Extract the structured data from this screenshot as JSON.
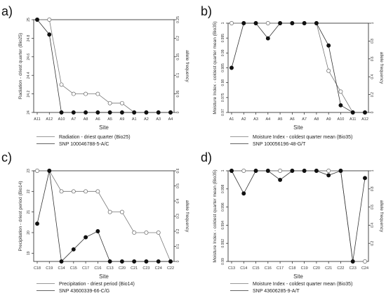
{
  "chart_data": [
    {
      "type": "line",
      "panel_label": "a)",
      "xlabel": "Site",
      "ylabel": "Radiation - driest quarter (Bio25)",
      "y2label": "allele frequency",
      "categories": [
        "A11",
        "A12",
        "A10",
        "A7",
        "A8",
        "A6",
        "A5",
        "A9",
        "A1",
        "A2",
        "A3",
        "A4"
      ],
      "y_ticks": [
        24.0,
        24.2,
        24.4,
        24.6,
        24.8,
        25.0
      ],
      "y2_ticks": [
        0.0,
        0.05,
        0.1,
        0.15,
        0.2,
        0.25
      ],
      "ylim": [
        24.0,
        25.0
      ],
      "y2lim": [
        0.0,
        0.25
      ],
      "series": [
        {
          "name": "Radiation - driest quarter (Bio25)",
          "axis": "left",
          "marker": "open",
          "values": [
            25.0,
            25.0,
            24.3,
            24.2,
            24.2,
            24.2,
            24.1,
            24.1,
            24.0,
            24.0,
            24.0,
            24.0
          ]
        },
        {
          "name": "SNP 100046788-5-A/C",
          "axis": "right",
          "marker": "filled",
          "values": [
            0.25,
            0.21,
            0.0,
            0.0,
            0.0,
            0.0,
            0.0,
            0.0,
            0.0,
            0.0,
            0.0,
            0.0
          ]
        }
      ]
    },
    {
      "type": "line",
      "panel_label": "b)",
      "xlabel": "Site",
      "ylabel": "Moisture Index - coldest quarter mean (Bio35)",
      "y2label": "allele frequency",
      "categories": [
        "A1",
        "A2",
        "A3",
        "A4",
        "A5",
        "A6",
        "A7",
        "A8",
        "A9",
        "A10",
        "A11",
        "A12"
      ],
      "y_ticks": [
        0.97,
        0.975,
        0.98,
        0.985,
        0.99,
        0.995,
        1.0
      ],
      "y2_ticks": [
        0.0,
        0.2,
        0.4,
        0.6,
        0.8,
        1.0
      ],
      "ylim": [
        0.97,
        1.0
      ],
      "y2lim": [
        0.0,
        1.0
      ],
      "series": [
        {
          "name": "Moisture Index - coldest quarter mean (Bio35)",
          "axis": "left",
          "marker": "open",
          "values": [
            1.0,
            1.0,
            1.0,
            1.0,
            1.0,
            1.0,
            1.0,
            1.0,
            0.984,
            0.977,
            0.97,
            0.97
          ]
        },
        {
          "name": "SNP 100056196-48-G/T",
          "axis": "right",
          "marker": "filled",
          "values": [
            0.5,
            1.0,
            1.0,
            0.83,
            1.0,
            1.0,
            1.0,
            1.0,
            0.75,
            0.08,
            0.0,
            0.0
          ]
        }
      ]
    },
    {
      "type": "line",
      "panel_label": "c)",
      "xlabel": "Site",
      "ylabel": "Precipitation - driest period (Bio14)",
      "y2label": "allele frequency",
      "categories": [
        "C18",
        "C19",
        "C14",
        "C15",
        "C17",
        "C16",
        "C13",
        "C20",
        "C21",
        "C23",
        "C24",
        "C22"
      ],
      "y_ticks": [
        19,
        20,
        21,
        22,
        23
      ],
      "y2_ticks": [
        0.0,
        0.1,
        0.2,
        0.3,
        0.4,
        0.5,
        0.6
      ],
      "ylim": [
        18.6,
        23.0
      ],
      "y2lim": [
        0.0,
        0.6
      ],
      "series": [
        {
          "name": "Precipitation - driest period (Bio14)",
          "axis": "left",
          "marker": "open",
          "values": [
            23,
            23,
            22,
            22,
            22,
            22,
            21,
            21,
            20,
            20,
            20,
            18.6
          ]
        },
        {
          "name": "SNP 43600339-66-C/G",
          "axis": "right",
          "marker": "filled",
          "values": [
            0.25,
            0.6,
            0.0,
            0.08,
            0.16,
            0.2,
            0.0,
            0.0,
            0.0,
            0.0,
            0.0,
            0.0
          ]
        }
      ]
    },
    {
      "type": "line",
      "panel_label": "d)",
      "xlabel": "Site",
      "ylabel": "Moisture Index - coldest quarter mean (Bio35)",
      "y2label": "allele frequency",
      "categories": [
        "C13",
        "C14",
        "C15",
        "C16",
        "C17",
        "C18",
        "C19",
        "C20",
        "C21",
        "C22",
        "C23",
        "C24"
      ],
      "y_ticks": [
        0.99,
        0.992,
        0.994,
        0.996,
        0.998,
        1.0
      ],
      "y2_ticks": [
        0.2,
        0.4,
        0.6,
        0.8,
        1.0
      ],
      "ylim": [
        0.99,
        1.0
      ],
      "y2lim": [
        0.0,
        1.0
      ],
      "series": [
        {
          "name": "Moisture Index - coldest quarter mean (Bio35)",
          "axis": "left",
          "marker": "open",
          "values": [
            1.0,
            1.0,
            1.0,
            1.0,
            1.0,
            1.0,
            1.0,
            1.0,
            1.0,
            1.0,
            0.99,
            0.99
          ]
        },
        {
          "name": "SNP 43606285-9-A/T",
          "axis": "right",
          "marker": "filled",
          "values": [
            1.0,
            0.75,
            1.0,
            1.0,
            0.9,
            1.0,
            1.0,
            1.0,
            0.95,
            1.0,
            0.0,
            0.92
          ]
        }
      ]
    }
  ]
}
